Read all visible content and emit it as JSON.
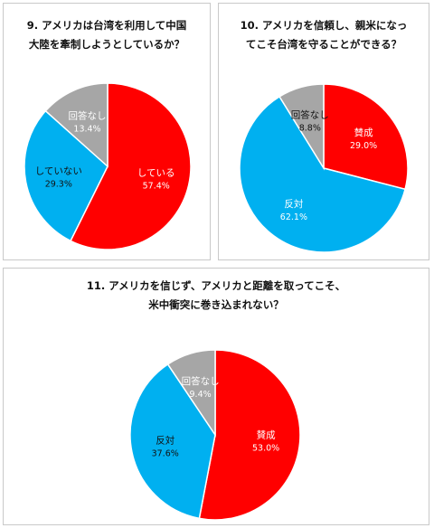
{
  "chart_data": [
    {
      "type": "pie",
      "title_lines": [
        "9. アメリカは台湾を利用して中国",
        "大陸を牽制しようとしているか？"
      ],
      "slices": [
        {
          "label": "している",
          "value": 57.4,
          "text": "57.4%",
          "color": "#ff0000",
          "label_color": "#ffffff"
        },
        {
          "label": "していない",
          "value": 29.3,
          "text": "29.3%",
          "color": "#00b0f0",
          "label_color": "#111111"
        },
        {
          "label": "回答なし",
          "value": 13.4,
          "text": "13.4%",
          "color": "#a6a6a6",
          "label_color": "#ffffff"
        }
      ]
    },
    {
      "type": "pie",
      "title_lines": [
        "10. アメリカを信頼し、親米になっ",
        "てこそ台湾を守ることができる？"
      ],
      "slices": [
        {
          "label": "賛成",
          "value": 29.0,
          "text": "29.0%",
          "color": "#ff0000",
          "label_color": "#ffffff"
        },
        {
          "label": "反対",
          "value": 62.1,
          "text": "62.1%",
          "color": "#00b0f0",
          "label_color": "#ffffff"
        },
        {
          "label": "回答なし",
          "value": 8.8,
          "text": "8.8%",
          "color": "#a6a6a6",
          "label_color": "#111111"
        }
      ]
    },
    {
      "type": "pie",
      "title_lines": [
        "11. アメリカを信じず、アメリカと距離を取ってこそ、",
        "米中衝突に巻き込まれない？"
      ],
      "slices": [
        {
          "label": "賛成",
          "value": 53.0,
          "text": "53.0%",
          "color": "#ff0000",
          "label_color": "#ffffff"
        },
        {
          "label": "反対",
          "value": 37.6,
          "text": "37.6%",
          "color": "#00b0f0",
          "label_color": "#111111"
        },
        {
          "label": "回答なし",
          "value": 9.4,
          "text": "9.4%",
          "color": "#a6a6a6",
          "label_color": "#ffffff"
        }
      ]
    }
  ]
}
